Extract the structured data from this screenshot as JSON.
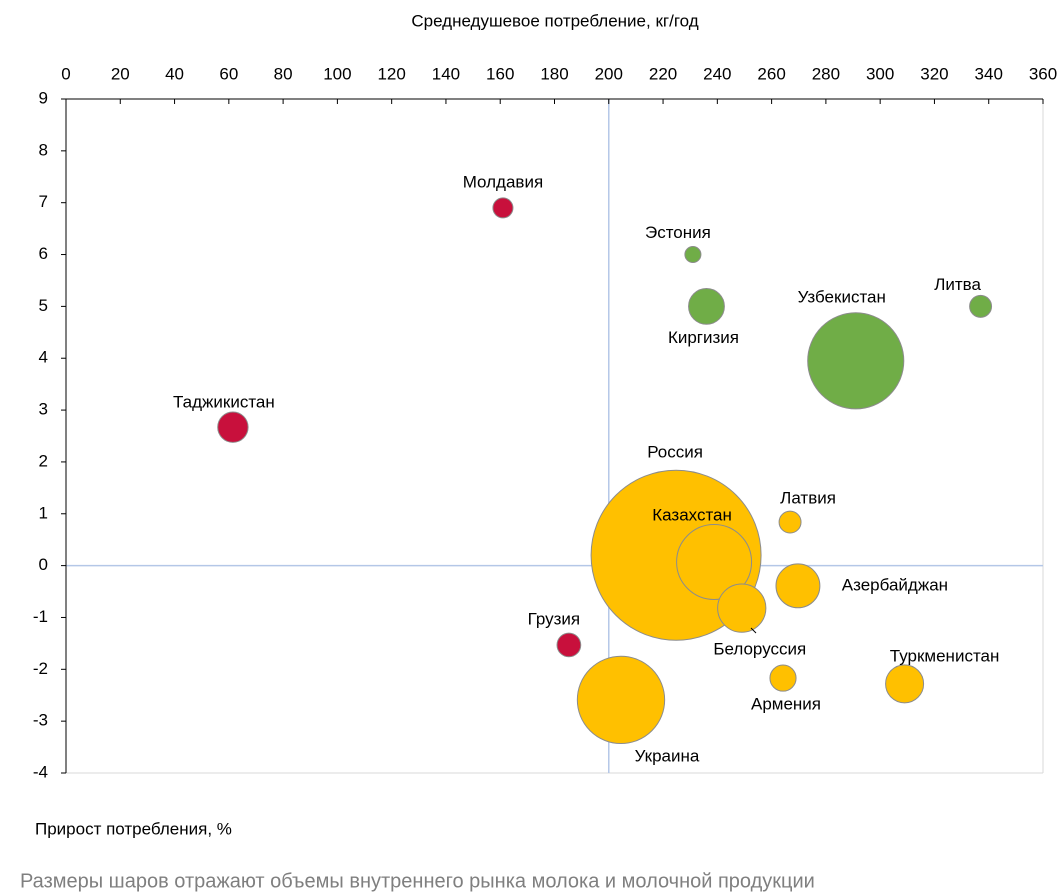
{
  "chart_data": {
    "type": "bubble",
    "xlabel": "Среднедушевое потребление, кг/год",
    "ylabel": "Прирост потребления, %",
    "note": "Размеры шаров отражают объемы внутреннего рынка молока и молочной продукции",
    "xlim": [
      0,
      360
    ],
    "xticks": [
      0,
      20,
      40,
      60,
      80,
      100,
      120,
      140,
      160,
      180,
      200,
      220,
      240,
      260,
      280,
      300,
      320,
      340,
      360
    ],
    "ylim": [
      -4,
      9
    ],
    "yticks": [
      -4,
      -3,
      -2,
      -1,
      0,
      1,
      2,
      3,
      4,
      5,
      6,
      7,
      8,
      9
    ],
    "reference_lines": {
      "x": 200,
      "y": 0
    },
    "points": [
      {
        "label": "Молдавия",
        "x": 161,
        "y": 6.9,
        "size": 1.0,
        "color": "#c8103c"
      },
      {
        "label": "Эстония",
        "x": 231,
        "y": 6.0,
        "size": 0.64,
        "color": "#70ad47"
      },
      {
        "label": "Киргизия",
        "x": 236,
        "y": 5.0,
        "size": 3.2,
        "color": "#70ad47"
      },
      {
        "label": "Узбекистан",
        "x": 291,
        "y": 3.95,
        "size": 23,
        "color": "#70ad47"
      },
      {
        "label": "Литва",
        "x": 337,
        "y": 5.0,
        "size": 1.2,
        "color": "#70ad47"
      },
      {
        "label": "Таджикистан",
        "x": 61.5,
        "y": 2.67,
        "size": 2.3,
        "color": "#c8103c"
      },
      {
        "label": "Россия",
        "x": 224.8,
        "y": 0.2,
        "size": 72,
        "color": "#ffc000"
      },
      {
        "label": "Казахстан",
        "x": 238.8,
        "y": 0.07,
        "size": 14,
        "color": "#ffc000"
      },
      {
        "label": "Латвия",
        "x": 266.8,
        "y": 0.84,
        "size": 1.2,
        "color": "#ffc000"
      },
      {
        "label": "Азербайджан",
        "x": 269.7,
        "y": -0.39,
        "size": 4.8,
        "color": "#ffc000"
      },
      {
        "label": "Белоруссия",
        "x": 249,
        "y": -0.82,
        "size": 5.8,
        "color": "#ffc000"
      },
      {
        "label": "Грузия",
        "x": 185.3,
        "y": -1.53,
        "size": 1.4,
        "color": "#c8103c"
      },
      {
        "label": "Украина",
        "x": 204.5,
        "y": -2.59,
        "size": 19,
        "color": "#ffc000"
      },
      {
        "label": "Армения",
        "x": 264.2,
        "y": -2.17,
        "size": 1.7,
        "color": "#ffc000"
      },
      {
        "label": "Туркменистан",
        "x": 309,
        "y": -2.28,
        "size": 3.6,
        "color": "#ffc000"
      }
    ]
  }
}
